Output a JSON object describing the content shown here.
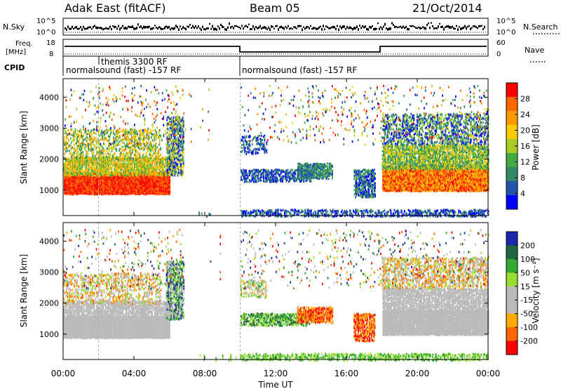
{
  "header": {
    "station": "Adak East (fitACF)",
    "beam": "Beam 05",
    "date": "21/Oct/2014"
  },
  "strips": {
    "nsky_label": "N.Sky",
    "nsearch_label": "N.Search",
    "nsky_ticks": [
      "10^5",
      "10^0"
    ],
    "nsearch_ticks": [
      "10^5",
      "10^0"
    ],
    "freq_label_1": "Freq.",
    "freq_label_2": "[MHz]",
    "freq_ticks": [
      "18",
      "8"
    ],
    "nave_label": "Nave",
    "nave_ticks": [
      "60",
      "0"
    ],
    "cpid_label": "CPID",
    "cpid_entries": [
      {
        "text": "normalsound (fast) -157 RF",
        "start_h": 0.0
      },
      {
        "text": "themis 3300 RF",
        "start_h": 2.0
      },
      {
        "text": "normalsound (fast) -157 RF",
        "start_h": 10.0
      }
    ]
  },
  "chart_data": [
    {
      "type": "heatmap",
      "panel": "power",
      "x_range_hours": [
        0,
        24
      ],
      "ylabel": "Slant Range [km]",
      "ylim": [
        180,
        4600
      ],
      "yticks": [
        1000,
        2000,
        3000,
        4000
      ],
      "colorbar_label": "Power [dB]",
      "colorbar_ticks": [
        "28",
        "24",
        "20",
        "16",
        "12",
        "8",
        "4"
      ],
      "colorbar_colors": [
        "#ff0000",
        "#ff6600",
        "#ff9900",
        "#ffcc00",
        "#aacc22",
        "#44aa44",
        "#338866",
        "#2255aa",
        "#0000ff"
      ]
    },
    {
      "type": "heatmap",
      "panel": "velocity",
      "x_range_hours": [
        0,
        24
      ],
      "ylabel": "Slant Range [km]",
      "ylim": [
        180,
        4600
      ],
      "yticks": [
        1000,
        2000,
        3000,
        4000
      ],
      "colorbar_label": "Velocity [m s⁻¹]",
      "colorbar_ticks": [
        "200",
        "100",
        "50",
        "15",
        "-15",
        "-50",
        "-100",
        "-200"
      ],
      "colorbar_colors": [
        "#1a2aaa",
        "#226644",
        "#33aa33",
        "#99dd33",
        "#bbbbbb",
        "#bbbbbb",
        "#ffaa00",
        "#ff6600",
        "#ff0000"
      ]
    }
  ],
  "xaxis": {
    "label": "Time UT",
    "ticks": [
      "00:00",
      "04:00",
      "08:00",
      "12:00",
      "16:00",
      "20:00",
      "00:00"
    ]
  }
}
